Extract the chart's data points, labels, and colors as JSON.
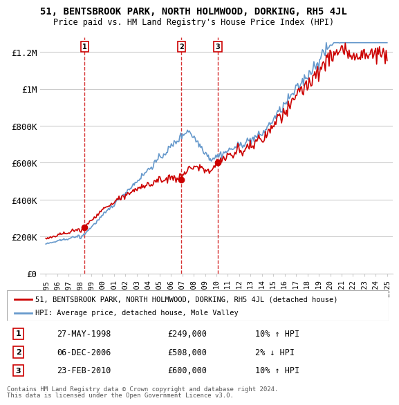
{
  "title": "51, BENTSBROOK PARK, NORTH HOLMWOOD, DORKING, RH5 4JL",
  "subtitle": "Price paid vs. HM Land Registry's House Price Index (HPI)",
  "ylabel_ticks": [
    0,
    200000,
    400000,
    600000,
    800000,
    1000000,
    1200000
  ],
  "ylabel_labels": [
    "£0",
    "£200K",
    "£400K",
    "£600K",
    "£800K",
    "£1M",
    "£1.2M"
  ],
  "xlim": [
    1994.5,
    2025.5
  ],
  "ylim": [
    0,
    1280000
  ],
  "line_color_red": "#cc0000",
  "line_color_blue": "#6699cc",
  "bg_color": "#ffffff",
  "grid_color": "#cccccc",
  "sales": [
    {
      "num": 1,
      "year": 1998.41,
      "price": 249000,
      "label": "27-MAY-1998",
      "price_str": "£249,000",
      "hpi_str": "10% ↑ HPI"
    },
    {
      "num": 2,
      "year": 2006.92,
      "price": 508000,
      "label": "06-DEC-2006",
      "price_str": "£508,000",
      "hpi_str": "2% ↓ HPI"
    },
    {
      "num": 3,
      "year": 2010.13,
      "price": 600000,
      "label": "23-FEB-2010",
      "price_str": "£600,000",
      "hpi_str": "10% ↑ HPI"
    }
  ],
  "legend_line1": "51, BENTSBROOK PARK, NORTH HOLMWOOD, DORKING, RH5 4JL (detached house)",
  "legend_line2": "HPI: Average price, detached house, Mole Valley",
  "footnote1": "Contains HM Land Registry data © Crown copyright and database right 2024.",
  "footnote2": "This data is licensed under the Open Government Licence v3.0."
}
